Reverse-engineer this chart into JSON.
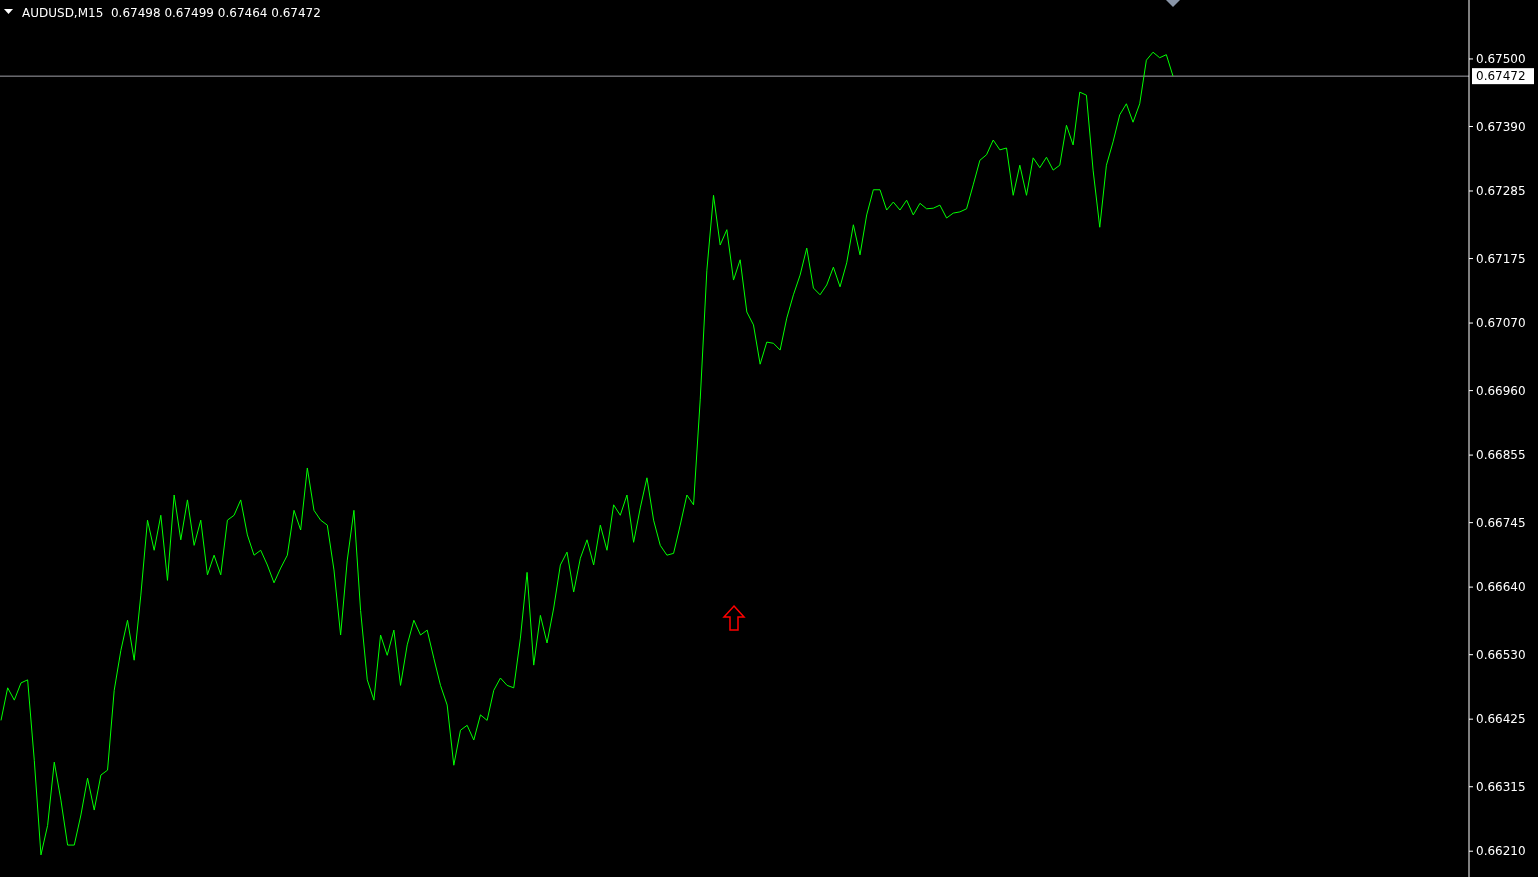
{
  "chart_data": {
    "type": "line",
    "title": "AUDUSD,M15  0.67498 0.67499 0.67464 0.67472",
    "categories": [
      null,
      null,
      null,
      null,
      null,
      null,
      null,
      null,
      null,
      null,
      null,
      null,
      null,
      null,
      null,
      null,
      null,
      null,
      null,
      null,
      null,
      null,
      null,
      null,
      null,
      null,
      null,
      null,
      null,
      null,
      null,
      null,
      null,
      null,
      null,
      null,
      null,
      null,
      null,
      null,
      null,
      null,
      null,
      null,
      null,
      null,
      null,
      null,
      null,
      null,
      null,
      null,
      null,
      null,
      null,
      null,
      null,
      null,
      null,
      null,
      null,
      null,
      null,
      null,
      null,
      null,
      null,
      null,
      null,
      null,
      null,
      null,
      null,
      null,
      null,
      null,
      null,
      null,
      null,
      null,
      null,
      null,
      null,
      null,
      null,
      null,
      null,
      null,
      null,
      null,
      null,
      null,
      null,
      null,
      null,
      null,
      null,
      null,
      null,
      null,
      null,
      null,
      null,
      null,
      null,
      null,
      null,
      null,
      null,
      null,
      null,
      null,
      null,
      null,
      null,
      null,
      null,
      null,
      null,
      null,
      null,
      null,
      null,
      null,
      null,
      null,
      null,
      null,
      null,
      null,
      null,
      null,
      null,
      null,
      null,
      null,
      null,
      null,
      null,
      null,
      null,
      null,
      null,
      null,
      null,
      null,
      null,
      null,
      null,
      null,
      null,
      null,
      null,
      null,
      null,
      null,
      null,
      null,
      null,
      null,
      null,
      null,
      null,
      null,
      null,
      null,
      null,
      null,
      null,
      null,
      null,
      null,
      null,
      null,
      null,
      null,
      null
    ],
    "series": [
      {
        "color": "#00ff00",
        "values": [
          0.66423,
          0.66476,
          0.66456,
          0.66484,
          0.66489,
          0.66358,
          0.66204,
          0.66252,
          0.66355,
          0.66293,
          0.6622,
          0.6622,
          0.66269,
          0.66329,
          0.66277,
          0.66334,
          0.66342,
          0.66472,
          0.66537,
          0.66586,
          0.66521,
          0.66627,
          0.66749,
          0.667,
          0.66757,
          0.66651,
          0.6679,
          0.66717,
          0.66782,
          0.66708,
          0.66749,
          0.6666,
          0.66692,
          0.6666,
          0.66749,
          0.66757,
          0.66782,
          0.66725,
          0.66692,
          0.667,
          0.66676,
          0.66647,
          0.66671,
          0.66692,
          0.66765,
          0.66733,
          0.66834,
          0.66765,
          0.66749,
          0.66741,
          0.66668,
          0.66562,
          0.66684,
          0.66765,
          0.66602,
          0.66489,
          0.66456,
          0.66562,
          0.66529,
          0.6657,
          0.6648,
          0.66546,
          0.66586,
          0.66562,
          0.6657,
          0.66524,
          0.6648,
          0.66448,
          0.6635,
          0.66407,
          0.66415,
          0.66391,
          0.66432,
          0.66423,
          0.66472,
          0.66492,
          0.6648,
          0.66476,
          0.66557,
          0.66664,
          0.66513,
          0.66594,
          0.66549,
          0.66606,
          0.66676,
          0.66697,
          0.66632,
          0.66687,
          0.66717,
          0.66676,
          0.66741,
          0.667,
          0.66774,
          0.66757,
          0.6679,
          0.66713,
          0.66769,
          0.66818,
          0.66749,
          0.66708,
          0.66692,
          0.66695,
          0.66741,
          0.6679,
          0.66774,
          0.66945,
          0.67156,
          0.67278,
          0.67197,
          0.67222,
          0.6714,
          0.67173,
          0.67088,
          0.67067,
          0.67003,
          0.67039,
          0.67037,
          0.67026,
          0.67078,
          0.67116,
          0.67148,
          0.67192,
          0.67127,
          0.67116,
          0.67132,
          0.67161,
          0.67129,
          0.67168,
          0.6723,
          0.67181,
          0.67246,
          0.67287,
          0.67287,
          0.67254,
          0.67267,
          0.67254,
          0.6727,
          0.67246,
          0.67265,
          0.67256,
          0.67257,
          0.67262,
          0.67241,
          0.67249,
          0.67251,
          0.67256,
          0.67295,
          0.67335,
          0.67344,
          0.67368,
          0.67352,
          0.67355,
          0.67278,
          0.67327,
          0.67278,
          0.67339,
          0.67323,
          0.6734,
          0.67319,
          0.67327,
          0.67392,
          0.6736,
          0.67446,
          0.67441,
          0.67319,
          0.67226,
          0.67327,
          0.67365,
          0.67409,
          0.67427,
          0.67397,
          0.67427,
          0.67498,
          0.67511,
          0.67502,
          0.67507,
          0.67472
        ]
      }
    ],
    "ylim": [
      0.66168,
      0.67596
    ],
    "yticks": [
      {
        "value": 0.675,
        "label": "0.67500"
      },
      {
        "value": 0.6739,
        "label": "0.67390"
      },
      {
        "value": 0.67285,
        "label": "0.67285"
      },
      {
        "value": 0.67175,
        "label": "0.67175"
      },
      {
        "value": 0.6707,
        "label": "0.67070"
      },
      {
        "value": 0.6696,
        "label": "0.66960"
      },
      {
        "value": 0.66855,
        "label": "0.66855"
      },
      {
        "value": 0.66745,
        "label": "0.66745"
      },
      {
        "value": 0.6664,
        "label": "0.66640"
      },
      {
        "value": 0.6653,
        "label": "0.66530"
      },
      {
        "value": 0.66425,
        "label": "0.66425"
      },
      {
        "value": 0.66315,
        "label": "0.66315"
      },
      {
        "value": 0.6621,
        "label": "0.66210"
      }
    ],
    "tick_labels": "y",
    "marker": "none",
    "line_style": "solid",
    "ref_lines": [
      {
        "axis": "y",
        "value": 0.67472,
        "label": "0.67472",
        "color": "#a0a0a8"
      }
    ]
  }
}
